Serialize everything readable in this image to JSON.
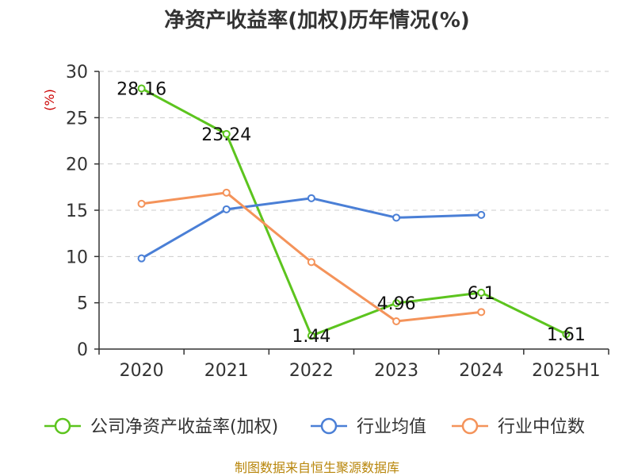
{
  "chart_data": {
    "type": "line",
    "title": "净资产收益率(加权)历年情况(%)",
    "ylabel": "(%)",
    "xlabel": "",
    "categories": [
      "2020",
      "2021",
      "2022",
      "2023",
      "2024",
      "2025H1"
    ],
    "ylim": [
      0,
      30
    ],
    "yticks": [
      0,
      5,
      10,
      15,
      20,
      25,
      30
    ],
    "grid": true,
    "legend_position": "bottom",
    "series": [
      {
        "name": "公司净资产收益率(加权)",
        "color": "#5cc41e",
        "values": [
          28.16,
          23.24,
          1.44,
          4.96,
          6.1,
          1.61
        ],
        "labels": [
          "28.16",
          "23.24",
          "1.44",
          "4.96",
          "6.1",
          "1.61"
        ]
      },
      {
        "name": "行业均值",
        "color": "#4a7fd6",
        "values": [
          9.8,
          15.1,
          16.3,
          14.2,
          14.5,
          null
        ]
      },
      {
        "name": "行业中位数",
        "color": "#f4935a",
        "values": [
          15.7,
          16.9,
          9.4,
          3.0,
          4.0,
          null
        ]
      }
    ]
  },
  "source": "制图数据来自恒生聚源数据库"
}
